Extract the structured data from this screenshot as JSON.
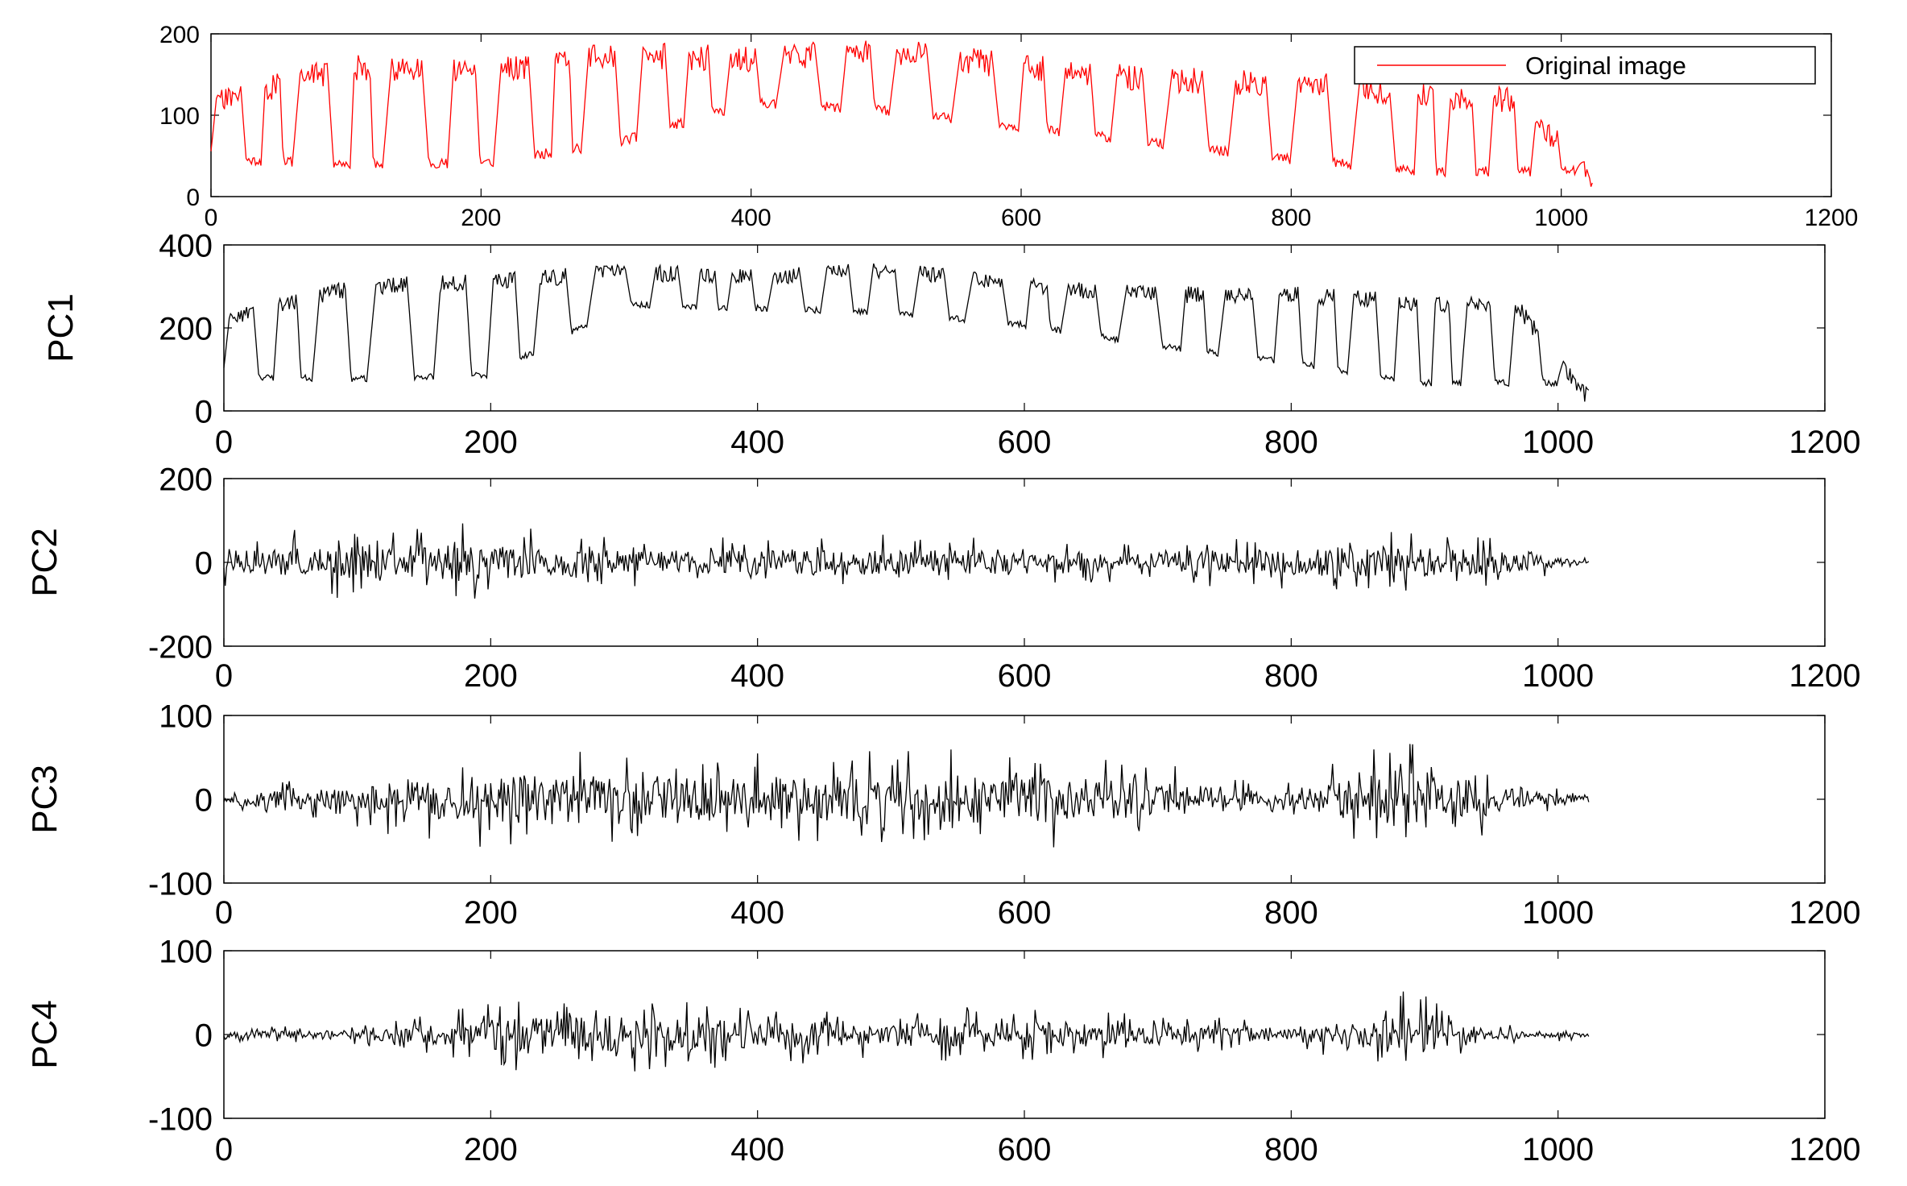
{
  "chart_data": [
    {
      "type": "line",
      "title": "",
      "xlabel": "",
      "ylabel": "",
      "xlim": [
        0,
        1200
      ],
      "ylim": [
        0,
        200
      ],
      "xticks": [
        0,
        200,
        400,
        600,
        800,
        1000,
        1200
      ],
      "yticks": [
        0,
        100,
        200
      ],
      "xtick_labels": [
        "0",
        "200",
        "400",
        "600",
        "800",
        "1000",
        "1200"
      ],
      "ytick_labels": [
        "0",
        "100",
        "200"
      ],
      "color": "#ff0000",
      "legend": {
        "placement": "top-right",
        "entries": [
          "Original image"
        ]
      },
      "series": [
        {
          "name": "Original image",
          "x_range": [
            0,
            1023
          ],
          "signal": {
            "envelope_peaks": [
              [
                0,
                130
              ],
              [
                100,
                175
              ],
              [
                200,
                170
              ],
              [
                300,
                190
              ],
              [
                400,
                185
              ],
              [
                500,
                195
              ],
              [
                600,
                175
              ],
              [
                700,
                160
              ],
              [
                800,
                155
              ],
              [
                900,
                140
              ],
              [
                960,
                135
              ],
              [
                1000,
                80
              ],
              [
                1023,
                30
              ]
            ],
            "envelope_base": [
              [
                0,
                40
              ],
              [
                100,
                35
              ],
              [
                200,
                35
              ],
              [
                300,
                60
              ],
              [
                400,
                110
              ],
              [
                500,
                100
              ],
              [
                600,
                80
              ],
              [
                700,
                60
              ],
              [
                800,
                40
              ],
              [
                900,
                25
              ],
              [
                1000,
                25
              ],
              [
                1023,
                30
              ]
            ],
            "noise": 20,
            "seed": 11
          }
        }
      ]
    },
    {
      "type": "line",
      "title": "",
      "xlabel": "",
      "ylabel": "PC1",
      "xlim": [
        0,
        1200
      ],
      "ylim": [
        0,
        400
      ],
      "xticks": [
        0,
        200,
        400,
        600,
        800,
        1000,
        1200
      ],
      "yticks": [
        0,
        200,
        400
      ],
      "xtick_labels": [
        "0",
        "200",
        "400",
        "600",
        "800",
        "1000",
        "1200"
      ],
      "ytick_labels": [
        "0",
        "200",
        "400"
      ],
      "color": "#000000",
      "series": [
        {
          "name": "",
          "x_range": [
            0,
            1023
          ],
          "signal": {
            "envelope_peaks": [
              [
                0,
                240
              ],
              [
                100,
                320
              ],
              [
                200,
                330
              ],
              [
                300,
                355
              ],
              [
                400,
                340
              ],
              [
                500,
                360
              ],
              [
                600,
                320
              ],
              [
                700,
                300
              ],
              [
                800,
                300
              ],
              [
                900,
                280
              ],
              [
                970,
                270
              ],
              [
                1000,
                140
              ],
              [
                1023,
                50
              ]
            ],
            "envelope_base": [
              [
                0,
                75
              ],
              [
                100,
                70
              ],
              [
                200,
                80
              ],
              [
                300,
                250
              ],
              [
                400,
                240
              ],
              [
                500,
                230
              ],
              [
                600,
                200
              ],
              [
                700,
                150
              ],
              [
                800,
                110
              ],
              [
                900,
                60
              ],
              [
                1000,
                60
              ],
              [
                1023,
                50
              ]
            ],
            "noise": 25,
            "seed": 23
          }
        }
      ]
    },
    {
      "type": "line",
      "title": "",
      "xlabel": "",
      "ylabel": "PC2",
      "xlim": [
        0,
        1200
      ],
      "ylim": [
        -200,
        200
      ],
      "xticks": [
        0,
        200,
        400,
        600,
        800,
        1000,
        1200
      ],
      "yticks": [
        -200,
        0,
        200
      ],
      "xtick_labels": [
        "0",
        "200",
        "400",
        "600",
        "800",
        "1000",
        "1200"
      ],
      "ytick_labels": [
        "-200",
        "0",
        "200"
      ],
      "color": "#000000",
      "series": [
        {
          "name": "",
          "x_range": [
            0,
            1023
          ],
          "signal": {
            "amplitude": [
              [
                0,
                60
              ],
              [
                150,
                110
              ],
              [
                300,
                60
              ],
              [
                500,
                70
              ],
              [
                700,
                50
              ],
              [
                900,
                90
              ],
              [
                1000,
                30
              ],
              [
                1023,
                10
              ]
            ],
            "seed": 37
          }
        }
      ]
    },
    {
      "type": "line",
      "title": "",
      "xlabel": "",
      "ylabel": "PC3",
      "xlim": [
        0,
        1200
      ],
      "ylim": [
        -100,
        100
      ],
      "xticks": [
        0,
        200,
        400,
        600,
        800,
        1000,
        1200
      ],
      "yticks": [
        -100,
        0,
        100
      ],
      "xtick_labels": [
        "0",
        "200",
        "400",
        "600",
        "800",
        "1000",
        "1200"
      ],
      "ytick_labels": [
        "-100",
        "0",
        "100"
      ],
      "color": "#000000",
      "series": [
        {
          "name": "",
          "x_range": [
            0,
            1023
          ],
          "signal": {
            "amplitude": [
              [
                0,
                15
              ],
              [
                100,
                35
              ],
              [
                220,
                70
              ],
              [
                300,
                55
              ],
              [
                460,
                60
              ],
              [
                540,
                65
              ],
              [
                650,
                55
              ],
              [
                800,
                20
              ],
              [
                890,
                85
              ],
              [
                960,
                30
              ],
              [
                1023,
                8
              ]
            ],
            "seed": 51
          }
        }
      ]
    },
    {
      "type": "line",
      "title": "",
      "xlabel": "",
      "ylabel": "PC4",
      "xlim": [
        0,
        1200
      ],
      "ylim": [
        -100,
        100
      ],
      "xticks": [
        0,
        200,
        400,
        600,
        800,
        1000,
        1200
      ],
      "yticks": [
        -100,
        0,
        100
      ],
      "xtick_labels": [
        "0",
        "200",
        "400",
        "600",
        "800",
        "1000",
        "1200"
      ],
      "ytick_labels": [
        "-100",
        "0",
        "100"
      ],
      "color": "#000000",
      "series": [
        {
          "name": "",
          "x_range": [
            0,
            1023
          ],
          "signal": {
            "amplitude": [
              [
                0,
                8
              ],
              [
                100,
                12
              ],
              [
                220,
                45
              ],
              [
                320,
                45
              ],
              [
                500,
                30
              ],
              [
                600,
                35
              ],
              [
                800,
                15
              ],
              [
                890,
                55
              ],
              [
                960,
                12
              ],
              [
                1023,
                6
              ]
            ],
            "seed": 67
          }
        }
      ]
    }
  ]
}
